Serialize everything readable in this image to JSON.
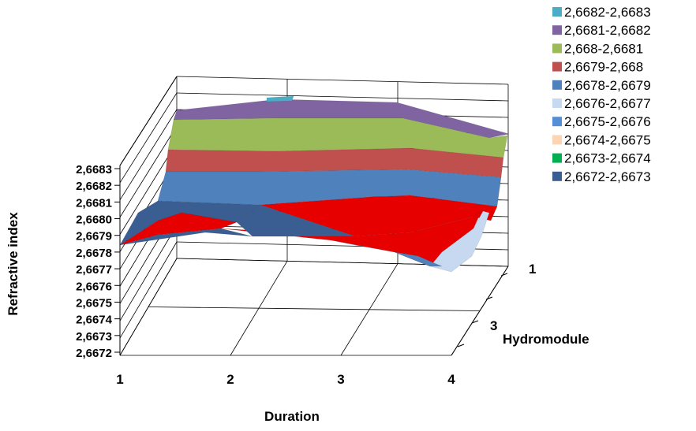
{
  "chart_data": {
    "type": "surface",
    "xlabel": "Duration",
    "ylabel": "Refractive   index",
    "zlabel": "Hydromodule",
    "x_ticks": [
      "1",
      "2",
      "3",
      "4"
    ],
    "depth_ticks": [
      "1",
      "3"
    ],
    "y_ticks": [
      "2,6683",
      "2,6682",
      "2,6681",
      "2,6680",
      "2,6679",
      "2,6678",
      "2,6677",
      "2,6676",
      "2,6675",
      "2,6674",
      "2,6673",
      "2,6672"
    ],
    "ylim": [
      2.6672,
      2.6683
    ],
    "legend_position": "top-right",
    "legend": [
      {
        "label": "2,6682-2,6683",
        "color": "#4bacc6"
      },
      {
        "label": "2,6681-2,6682",
        "color": "#8064a2"
      },
      {
        "label": "2,668-2,6681",
        "color": "#9bbb59"
      },
      {
        "label": "2,6679-2,668",
        "color": "#c0504d"
      },
      {
        "label": "2,6678-2,6679",
        "color": "#4f81bd"
      },
      {
        "label": "2,6676-2,6677",
        "color": "#c6d9f1"
      },
      {
        "label": "2,6675-2,6676",
        "color": "#558ed5"
      },
      {
        "label": "2,6674-2,6675",
        "color": "#fcd5b5"
      },
      {
        "label": "2,6673-2,6674",
        "color": "#00b050"
      },
      {
        "label": "2,6672-2,6673",
        "color": "#3a5e91"
      }
    ]
  }
}
